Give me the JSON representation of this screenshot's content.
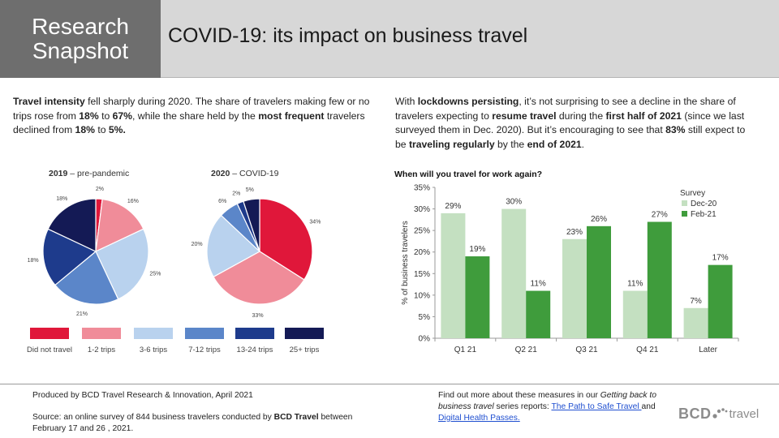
{
  "header": {
    "badge": "Research Snapshot",
    "title": "COVID-19: its impact on business travel"
  },
  "left_text": {
    "p1": "Travel intensity",
    "p2": " fell sharply during 2020. The share of travelers making few or no trips rose from ",
    "p3": "18%",
    "p4": " to ",
    "p5": "67%",
    "p6": ", while the share held by the ",
    "p7": "most frequent",
    "p8": " travelers declined from ",
    "p9": "18%",
    "p10": " to ",
    "p11": "5%."
  },
  "right_text": {
    "p1": "With ",
    "p2": "lockdowns persisting",
    "p3": ", it’s not surprising to see a decline in the share of travelers expecting to ",
    "p4": "resume travel",
    "p5": " during the ",
    "p6": "first half of 2021",
    "p7": " (since we last surveyed them in Dec. 2020). But it’s encouraging to see that ",
    "p8": "83%",
    "p9": " still expect to be ",
    "p10": "traveling regularly",
    "p11": " by the ",
    "p12": "end of 2021",
    "p13": "."
  },
  "pies": {
    "legend": [
      {
        "label": "Did not travel",
        "color": "#e0173a"
      },
      {
        "label": "1-2 trips",
        "color": "#f08c99"
      },
      {
        "label": "3-6 trips",
        "color": "#b9d2ee"
      },
      {
        "label": "7-12 trips",
        "color": "#5b86c9"
      },
      {
        "label": "13-24 trips",
        "color": "#1e3b8c"
      },
      {
        "label": "25+ trips",
        "color": "#141a55"
      }
    ]
  },
  "chart_data": [
    {
      "type": "pie",
      "title_bold": "2019",
      "title_rest": " – pre-pandemic",
      "categories": [
        "Did not travel",
        "1-2 trips",
        "3-6 trips",
        "7-12 trips",
        "13-24 trips",
        "25+ trips"
      ],
      "values": [
        2,
        16,
        25,
        21,
        18,
        18
      ],
      "labels": [
        "2%",
        "16%",
        "25%",
        "21%",
        "18%",
        "18%"
      ]
    },
    {
      "type": "pie",
      "title_bold": "2020",
      "title_rest": " – COVID-19",
      "categories": [
        "Did not travel",
        "1-2 trips",
        "3-6 trips",
        "7-12 trips",
        "13-24 trips",
        "25+ trips"
      ],
      "values": [
        34,
        33,
        20,
        6,
        2,
        5
      ],
      "labels": [
        "34%",
        "33%",
        "20%",
        "6%",
        "2%",
        "5%"
      ]
    },
    {
      "type": "bar",
      "title": "When will you travel for work again?",
      "ylabel": "% of business travelers",
      "xlabel": "",
      "legend_title": "Survey",
      "categories": [
        "Q1 21",
        "Q2 21",
        "Q3 21",
        "Q4 21",
        "Later"
      ],
      "ylim": [
        0,
        35
      ],
      "yticks": [
        "0%",
        "5%",
        "10%",
        "15%",
        "20%",
        "25%",
        "30%",
        "35%"
      ],
      "series": [
        {
          "name": "Dec-20",
          "color": "#c4e0c1",
          "values": [
            29,
            30,
            23,
            11,
            7
          ],
          "labels": [
            "29%",
            "30%",
            "23%",
            "11%",
            "7%"
          ]
        },
        {
          "name": "Feb-21",
          "color": "#3f9c3c",
          "values": [
            19,
            11,
            26,
            27,
            17
          ],
          "labels": [
            "19%",
            "11%",
            "26%",
            "27%",
            "17%"
          ]
        }
      ]
    }
  ],
  "footer": {
    "produced": "Produced by BCD Travel Research & Innovation, April 2021",
    "source_pre": "Source: an online survey of 844 business travelers conducted by ",
    "source_bold": "BCD Travel",
    "source_post": " between February 17 and 26 , 2021.",
    "more_pre": "Find out more about these measures in our ",
    "more_italic": "Getting back to business travel",
    "more_mid": " series reports: ",
    "link1": "The Path to Safe Travel ",
    "more_and": "and",
    "link2": "Digital Health Passes.",
    "logo_text": "BCD",
    "logo_travel": "travel"
  }
}
